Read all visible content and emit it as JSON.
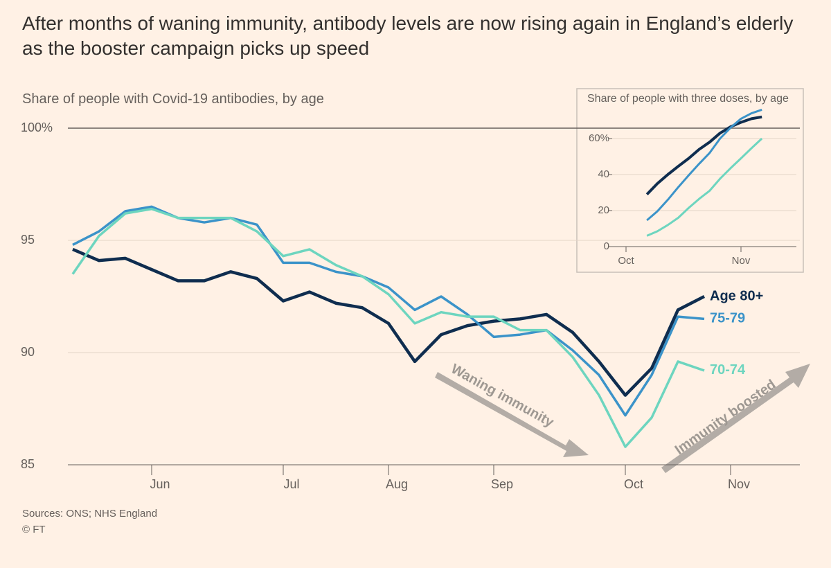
{
  "chart_data": [
    {
      "type": "line",
      "title": "After months of waning immunity, antibody levels are now rising again in England’s elderly as the booster campaign picks up speed",
      "subtitle": "Share of people with Covid-19 antibodies, by age",
      "categories": [
        null,
        null,
        null,
        "Jun",
        null,
        null,
        null,
        null,
        "Jul",
        null,
        null,
        null,
        "Aug",
        null,
        null,
        null,
        "Sep",
        null,
        null,
        null,
        null,
        "Oct",
        null,
        null,
        null,
        "Nov"
      ],
      "series": [
        {
          "name": "Age 80+",
          "color": "#0f2d4f",
          "values": [
            94.6,
            94.1,
            94.2,
            93.7,
            93.2,
            93.2,
            93.6,
            93.3,
            92.3,
            92.7,
            92.2,
            92.0,
            91.3,
            89.6,
            90.8,
            91.2,
            91.4,
            91.5,
            91.7,
            90.9,
            89.6,
            88.1,
            89.3,
            91.9,
            92.5,
            null
          ]
        },
        {
          "name": "75-79",
          "color": "#3b93c9",
          "values": [
            94.8,
            95.4,
            96.3,
            96.5,
            96.0,
            95.8,
            96.0,
            95.7,
            94.0,
            94.0,
            93.6,
            93.4,
            92.9,
            91.9,
            92.5,
            91.7,
            90.7,
            90.8,
            91.0,
            90.1,
            89.0,
            87.2,
            89.0,
            91.6,
            91.5,
            null
          ]
        },
        {
          "name": "70-74",
          "color": "#6dd5bf",
          "values": [
            93.5,
            95.2,
            96.2,
            96.4,
            96.0,
            96.0,
            96.0,
            95.4,
            94.3,
            94.6,
            93.9,
            93.4,
            92.6,
            91.3,
            91.8,
            91.6,
            91.6,
            91.0,
            91.0,
            89.8,
            88.1,
            85.8,
            87.1,
            89.6,
            89.2,
            null
          ]
        }
      ],
      "ylim": [
        85,
        100
      ],
      "yticks": [
        85,
        90,
        95,
        {
          "value": 100,
          "label": "100%"
        }
      ],
      "grid": true,
      "annotations": [
        "Waning immunity",
        "Immunity boosted"
      ],
      "source": "Sources: ONS; NHS England",
      "copyright": "© FT"
    },
    {
      "type": "line",
      "title": "Share of people with three doses, by age",
      "categories": [
        "Oct",
        null,
        null,
        null,
        null,
        null,
        null,
        null,
        null,
        null,
        null,
        "Nov",
        null,
        null
      ],
      "series": [
        {
          "color": "#0f2d4f",
          "values": [
            null,
            null,
            29,
            35,
            40,
            44.6,
            49,
            54,
            58,
            63,
            66.5,
            69,
            71,
            72
          ]
        },
        {
          "color": "#3b93c9",
          "values": [
            null,
            null,
            14.6,
            19.6,
            26,
            33,
            39.6,
            46,
            52,
            60,
            66,
            71,
            74,
            76
          ]
        },
        {
          "color": "#6dd5bf",
          "values": [
            null,
            null,
            6,
            8.5,
            12,
            16,
            21.5,
            26.5,
            31,
            37.7,
            43.5,
            49,
            54.6,
            60
          ]
        }
      ],
      "ylim": [
        0,
        80
      ],
      "yticks": [
        0,
        20,
        40,
        {
          "value": 60,
          "label": "60%"
        }
      ],
      "grid": true
    }
  ]
}
